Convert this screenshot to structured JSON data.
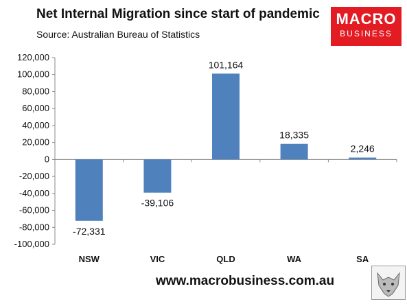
{
  "header": {
    "title": "Net Internal Migration since start of pandemic",
    "subtitle": "Source: Australian Bureau of Statistics"
  },
  "logo": {
    "line1": "MACRO",
    "line2": "BUSINESS"
  },
  "footer": {
    "url": "www.macrobusiness.com.au"
  },
  "colors": {
    "bar": "#4f81bd",
    "logo_bg": "#e31b23"
  },
  "chart_data": {
    "type": "bar",
    "title": "Net Internal Migration since start of pandemic",
    "subtitle": "Source: Australian Bureau of Statistics",
    "categories": [
      "NSW",
      "VIC",
      "QLD",
      "WA",
      "SA"
    ],
    "values": [
      -72331,
      -39106,
      101164,
      18335,
      2246
    ],
    "data_labels": [
      "-72,331",
      "-39,106",
      "101,164",
      "18,335",
      "2,246"
    ],
    "ylim": [
      -100000,
      120000
    ],
    "yticks": [
      120000,
      100000,
      80000,
      60000,
      40000,
      20000,
      0,
      -20000,
      -40000,
      -60000,
      -80000,
      -100000
    ],
    "ytick_labels": [
      "120,000",
      "100,000",
      "80,000",
      "60,000",
      "40,000",
      "20,000",
      "0",
      "-20,000",
      "-40,000",
      "-60,000",
      "-80,000",
      "-100,000"
    ],
    "xlabel": "",
    "ylabel": "",
    "grid": false,
    "legend": "none"
  }
}
